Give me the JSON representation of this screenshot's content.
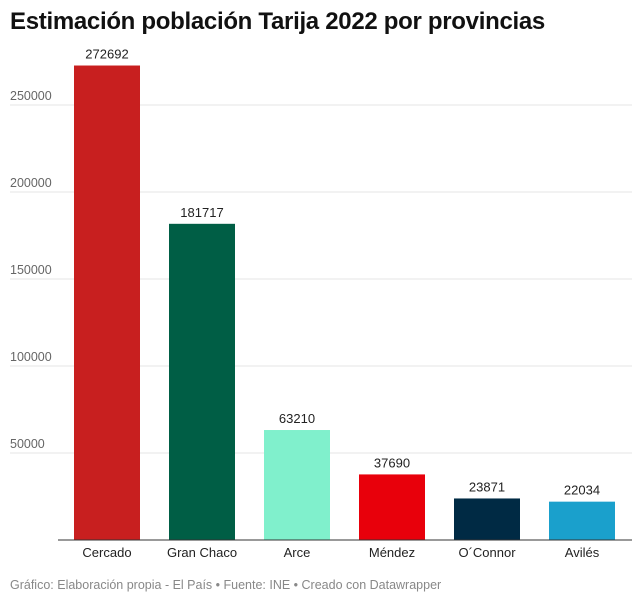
{
  "title": "Estimación población Tarija 2022 por provincias",
  "footer": "Gráfico: Elaboración propia - El País • Fuente: INE • Creado con Datawrapper",
  "chart_data": {
    "type": "bar",
    "categories": [
      "Cercado",
      "Gran Chaco",
      "Arce",
      "Méndez",
      "O´Connor",
      "Avilés"
    ],
    "values": [
      272692,
      181717,
      63210,
      37690,
      23871,
      22034
    ],
    "colors": [
      "#c81f1f",
      "#005e45",
      "#80f0cc",
      "#e8000b",
      "#002a44",
      "#1aa0cc"
    ],
    "title": "Estimación población Tarija 2022 por provincias",
    "xlabel": "",
    "ylabel": "",
    "ylim": [
      0,
      280000
    ],
    "yticks": [
      50000,
      100000,
      150000,
      200000,
      250000
    ],
    "grid": true,
    "legend": "none"
  }
}
